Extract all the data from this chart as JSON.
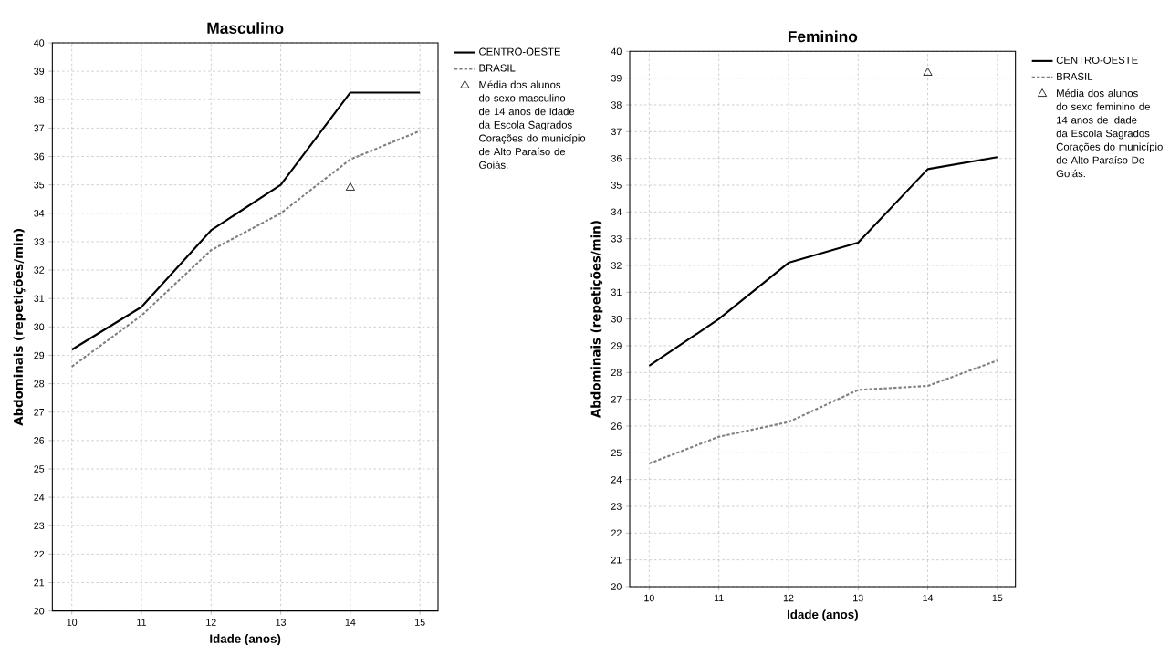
{
  "chart_data": [
    {
      "type": "line",
      "title": "Masculino",
      "xlabel": "Idade (anos)",
      "ylabel": "Abdominais (repetições/min)",
      "x": [
        10,
        11,
        12,
        13,
        14,
        15
      ],
      "xlim": [
        9.72,
        15.26
      ],
      "xticks": [
        10,
        11,
        12,
        13,
        14,
        15
      ],
      "ylim": [
        20,
        40
      ],
      "yticks": [
        20,
        21,
        22,
        23,
        24,
        25,
        26,
        27,
        28,
        29,
        30,
        31,
        32,
        33,
        34,
        35,
        36,
        37,
        38,
        39,
        40
      ],
      "grid": true,
      "legend": "right",
      "series": [
        {
          "name": "CENTRO-OESTE",
          "color": "#000000",
          "line_style": "solid",
          "values": [
            29.2,
            30.7,
            33.4,
            35.0,
            38.25,
            38.25
          ]
        },
        {
          "name": "BRASIL",
          "color": "#808080",
          "line_style": "dashed",
          "values": [
            28.6,
            30.4,
            32.7,
            34.0,
            35.9,
            36.9
          ]
        },
        {
          "name": "Média dos alunos do sexo masculino de 14 anos de idade da Escola Sagrados Corações do município de Alto Paraíso de Goiás.",
          "type": "scatter",
          "marker": "triangle",
          "color": "#000000",
          "x": [
            14
          ],
          "values": [
            34.9
          ]
        }
      ]
    },
    {
      "type": "line",
      "title": "Feminino",
      "xlabel": "Idade (anos)",
      "ylabel": "Abdominais (repetições/min)",
      "x": [
        10,
        11,
        12,
        13,
        14,
        15
      ],
      "xlim": [
        9.72,
        15.26
      ],
      "xticks": [
        10,
        11,
        12,
        13,
        14,
        15
      ],
      "ylim": [
        20,
        40
      ],
      "yticks": [
        20,
        21,
        22,
        23,
        24,
        25,
        26,
        27,
        28,
        29,
        30,
        31,
        32,
        33,
        34,
        35,
        36,
        37,
        38,
        39,
        40
      ],
      "grid": true,
      "legend": "right",
      "series": [
        {
          "name": "CENTRO-OESTE",
          "color": "#000000",
          "line_style": "solid",
          "values": [
            28.25,
            30.0,
            32.1,
            32.85,
            35.6,
            36.05
          ]
        },
        {
          "name": "BRASIL",
          "color": "#808080",
          "line_style": "dashed",
          "values": [
            24.6,
            25.6,
            26.15,
            27.35,
            27.5,
            28.45
          ]
        },
        {
          "name": "Média dos alunos do sexo feminino de 14 anos de idade da Escola Sagrados Corações do município de Alto Paraíso De Goiás.",
          "type": "scatter",
          "marker": "triangle",
          "color": "#000000",
          "x": [
            14
          ],
          "values": [
            39.2
          ]
        }
      ]
    }
  ]
}
